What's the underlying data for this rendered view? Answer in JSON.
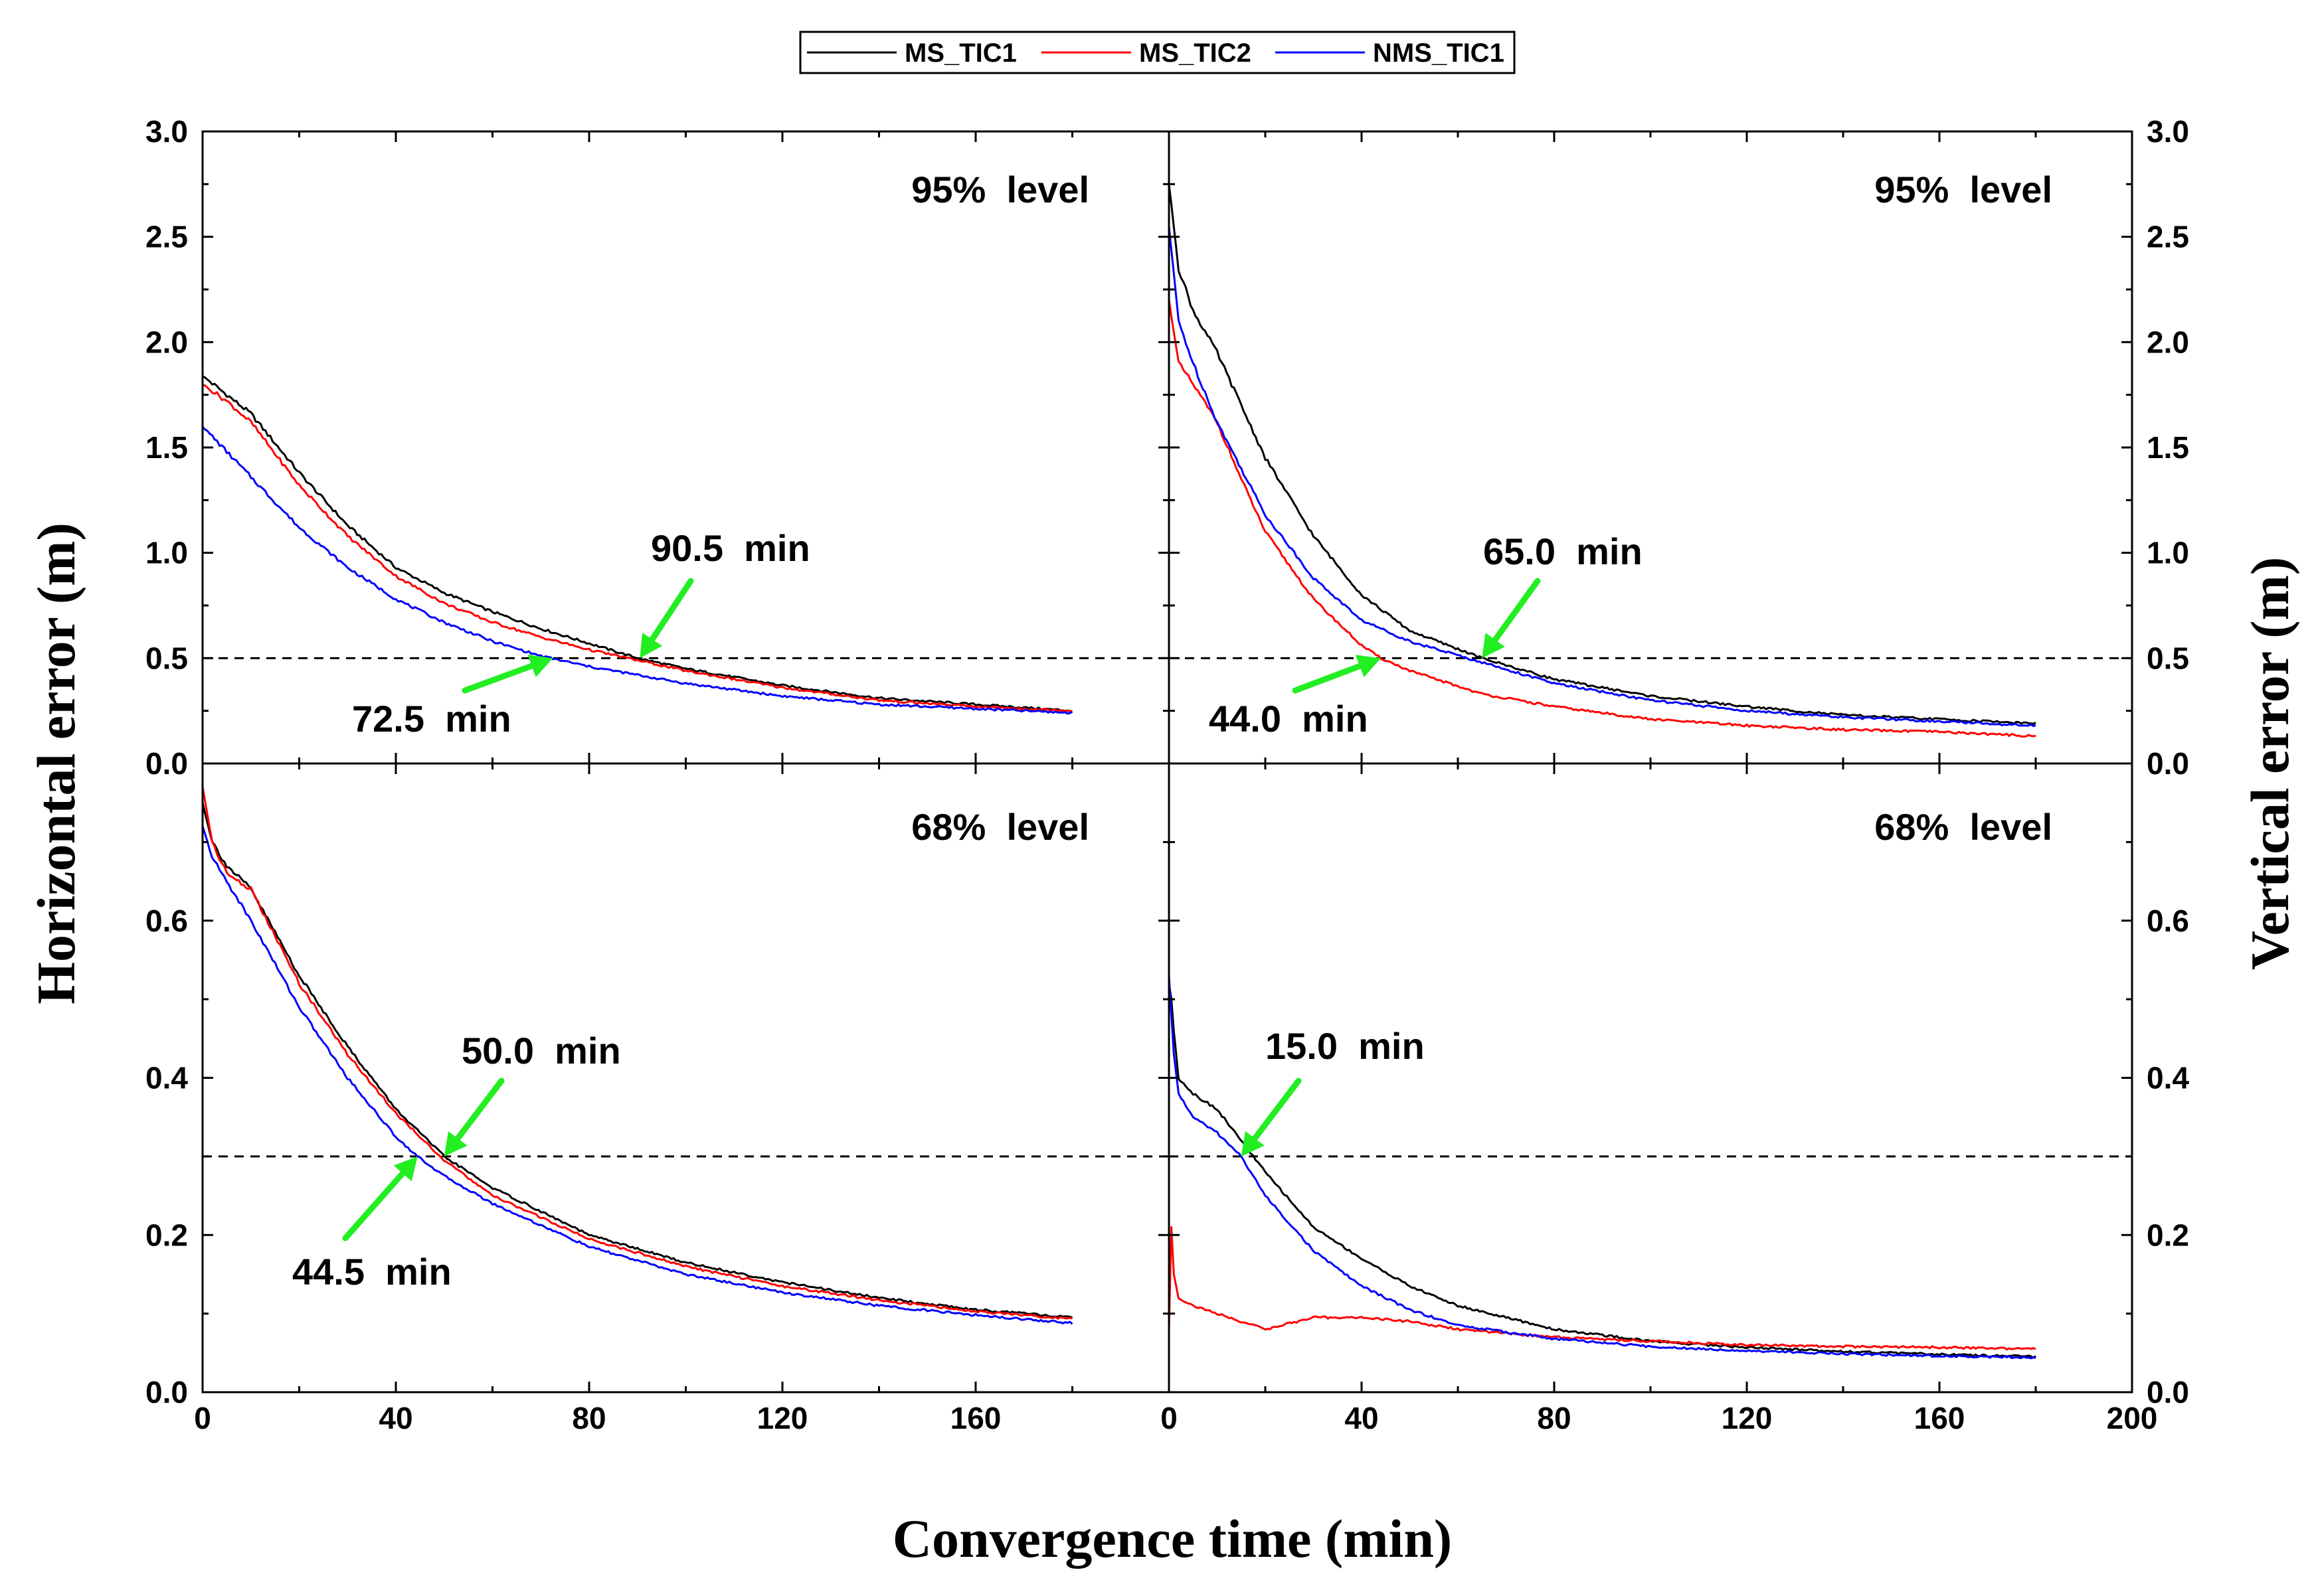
{
  "chart_data": {
    "type": "line",
    "xlabel": "Convergence time (min)",
    "ylabel_left": "Horizontal error (m)",
    "ylabel_right": "Vertical error (m)",
    "legend": [
      {
        "name": "MS_TIC1",
        "color": "#000000"
      },
      {
        "name": "MS_TIC2",
        "color": "#ff0000"
      },
      {
        "name": "NMS_TIC1",
        "color": "#0000ff"
      }
    ],
    "x_ticks_left": [
      "0",
      "40",
      "80",
      "120",
      "160"
    ],
    "x_ticks_right": [
      "0",
      "40",
      "80",
      "120",
      "160",
      "200"
    ],
    "y_ticks_top": [
      "0.0",
      "0.5",
      "1.0",
      "1.5",
      "2.0",
      "2.5",
      "3.0"
    ],
    "y_ticks_bottom": [
      "0.0",
      "0.2",
      "0.4",
      "0.6"
    ],
    "panels": [
      {
        "id": "horizontal-95",
        "label": "95%  level",
        "xlim": [
          0,
          200
        ],
        "ylim": [
          0,
          3.0
        ],
        "threshold": 0.5,
        "series": [
          {
            "name": "MS_TIC1",
            "x": [
              0,
              5,
              10,
              20,
              30,
              40,
              50,
              60,
              70,
              80,
              90,
              100,
              120,
              140,
              160,
              180
            ],
            "y": [
              1.84,
              1.75,
              1.66,
              1.38,
              1.13,
              0.93,
              0.81,
              0.72,
              0.64,
              0.57,
              0.5,
              0.45,
              0.37,
              0.31,
              0.28,
              0.25
            ]
          },
          {
            "name": "MS_TIC2",
            "x": [
              0,
              5,
              10,
              20,
              30,
              40,
              50,
              60,
              70,
              80,
              90,
              100,
              120,
              140,
              160,
              180
            ],
            "y": [
              1.8,
              1.72,
              1.62,
              1.32,
              1.08,
              0.89,
              0.76,
              0.67,
              0.6,
              0.54,
              0.49,
              0.44,
              0.36,
              0.3,
              0.27,
              0.25
            ]
          },
          {
            "name": "NMS_TIC1",
            "x": [
              0,
              5,
              10,
              20,
              30,
              40,
              50,
              60,
              70,
              80,
              90,
              100,
              120,
              140,
              160,
              180
            ],
            "y": [
              1.6,
              1.48,
              1.36,
              1.12,
              0.93,
              0.78,
              0.67,
              0.58,
              0.51,
              0.46,
              0.42,
              0.38,
              0.32,
              0.28,
              0.26,
              0.24
            ]
          }
        ],
        "annotations": [
          {
            "text": "90.5  min",
            "x": 90.5
          },
          {
            "text": "72.5  min",
            "x": 72.5
          }
        ]
      },
      {
        "id": "vertical-95",
        "label": "95%  level",
        "xlim": [
          0,
          200
        ],
        "ylim": [
          0,
          3.0
        ],
        "threshold": 0.5,
        "series": [
          {
            "name": "MS_TIC1",
            "x": [
              0,
              2,
              5,
              10,
              15,
              20,
              30,
              40,
              50,
              65,
              80,
              100,
              120,
              140,
              160,
              180
            ],
            "y": [
              2.75,
              2.35,
              2.15,
              1.95,
              1.7,
              1.45,
              1.08,
              0.8,
              0.63,
              0.5,
              0.4,
              0.32,
              0.27,
              0.23,
              0.21,
              0.19
            ]
          },
          {
            "name": "MS_TIC2",
            "x": [
              0,
              2,
              5,
              10,
              15,
              20,
              30,
              40,
              44,
              50,
              65,
              80,
              100,
              120,
              140,
              160,
              180
            ],
            "y": [
              2.2,
              1.9,
              1.8,
              1.62,
              1.35,
              1.1,
              0.78,
              0.56,
              0.5,
              0.44,
              0.33,
              0.27,
              0.21,
              0.18,
              0.16,
              0.15,
              0.13
            ]
          },
          {
            "name": "NMS_TIC1",
            "x": [
              0,
              2,
              5,
              10,
              15,
              20,
              30,
              40,
              50,
              65,
              80,
              100,
              120,
              140,
              160,
              180
            ],
            "y": [
              2.55,
              2.1,
              1.9,
              1.62,
              1.4,
              1.18,
              0.88,
              0.68,
              0.58,
              0.48,
              0.38,
              0.3,
              0.25,
              0.22,
              0.2,
              0.18
            ]
          }
        ],
        "annotations": [
          {
            "text": "65.0  min",
            "x": 65.0
          },
          {
            "text": "44.0  min",
            "x": 44.0
          }
        ]
      },
      {
        "id": "horizontal-68",
        "label": "68%  level",
        "xlim": [
          0,
          200
        ],
        "ylim": [
          0,
          0.8
        ],
        "threshold": 0.3,
        "series": [
          {
            "name": "MS_TIC1",
            "x": [
              0,
              2,
              5,
              10,
              20,
              30,
              40,
              50,
              60,
              80,
              100,
              120,
              140,
              160,
              180
            ],
            "y": [
              0.75,
              0.7,
              0.67,
              0.64,
              0.53,
              0.44,
              0.36,
              0.3,
              0.26,
              0.2,
              0.165,
              0.14,
              0.12,
              0.105,
              0.095
            ]
          },
          {
            "name": "MS_TIC2",
            "x": [
              0,
              2,
              5,
              10,
              20,
              30,
              40,
              50,
              60,
              80,
              100,
              120,
              140,
              160,
              180
            ],
            "y": [
              0.77,
              0.7,
              0.66,
              0.64,
              0.52,
              0.43,
              0.355,
              0.295,
              0.25,
              0.195,
              0.16,
              0.135,
              0.117,
              0.103,
              0.093
            ]
          },
          {
            "name": "NMS_TIC1",
            "x": [
              0,
              2,
              5,
              10,
              20,
              30,
              40,
              44.5,
              50,
              60,
              80,
              100,
              120,
              140,
              160,
              180
            ],
            "y": [
              0.72,
              0.68,
              0.65,
              0.6,
              0.49,
              0.4,
              0.325,
              0.3,
              0.275,
              0.24,
              0.185,
              0.15,
              0.127,
              0.11,
              0.098,
              0.088
            ]
          }
        ],
        "annotations": [
          {
            "text": "50.0  min",
            "x": 50.0
          },
          {
            "text": "44.5  min",
            "x": 44.5
          }
        ]
      },
      {
        "id": "vertical-68",
        "label": "68%  level",
        "xlim": [
          0,
          200
        ],
        "ylim": [
          0,
          0.8
        ],
        "threshold": 0.3,
        "series": [
          {
            "name": "MS_TIC1",
            "x": [
              0,
              0.5,
              1,
              2,
              5,
              10,
              15,
              20,
              30,
              40,
              50,
              60,
              80,
              100,
              120,
              140,
              160,
              180
            ],
            "y": [
              0.52,
              0.5,
              0.46,
              0.4,
              0.38,
              0.36,
              0.32,
              0.28,
              0.21,
              0.17,
              0.135,
              0.11,
              0.08,
              0.065,
              0.057,
              0.052,
              0.048,
              0.045
            ]
          },
          {
            "name": "MS_TIC2",
            "x": [
              0,
              0.5,
              1,
              2,
              5,
              10,
              20,
              30,
              40,
              50,
              60,
              80,
              100,
              120,
              140,
              160,
              180
            ],
            "y": [
              0.08,
              0.21,
              0.15,
              0.12,
              0.11,
              0.1,
              0.08,
              0.095,
              0.095,
              0.09,
              0.08,
              0.07,
              0.065,
              0.06,
              0.058,
              0.057,
              0.055
            ]
          },
          {
            "name": "NMS_TIC1",
            "x": [
              0,
              0.5,
              1,
              2,
              5,
              10,
              15,
              20,
              30,
              40,
              50,
              60,
              80,
              100,
              120,
              140,
              160,
              180
            ],
            "y": [
              0.53,
              0.48,
              0.43,
              0.38,
              0.35,
              0.33,
              0.3,
              0.25,
              0.18,
              0.135,
              0.105,
              0.085,
              0.068,
              0.058,
              0.053,
              0.049,
              0.046,
              0.044
            ]
          }
        ],
        "annotations": [
          {
            "text": "15.0  min",
            "x": 15.0
          }
        ]
      }
    ]
  }
}
